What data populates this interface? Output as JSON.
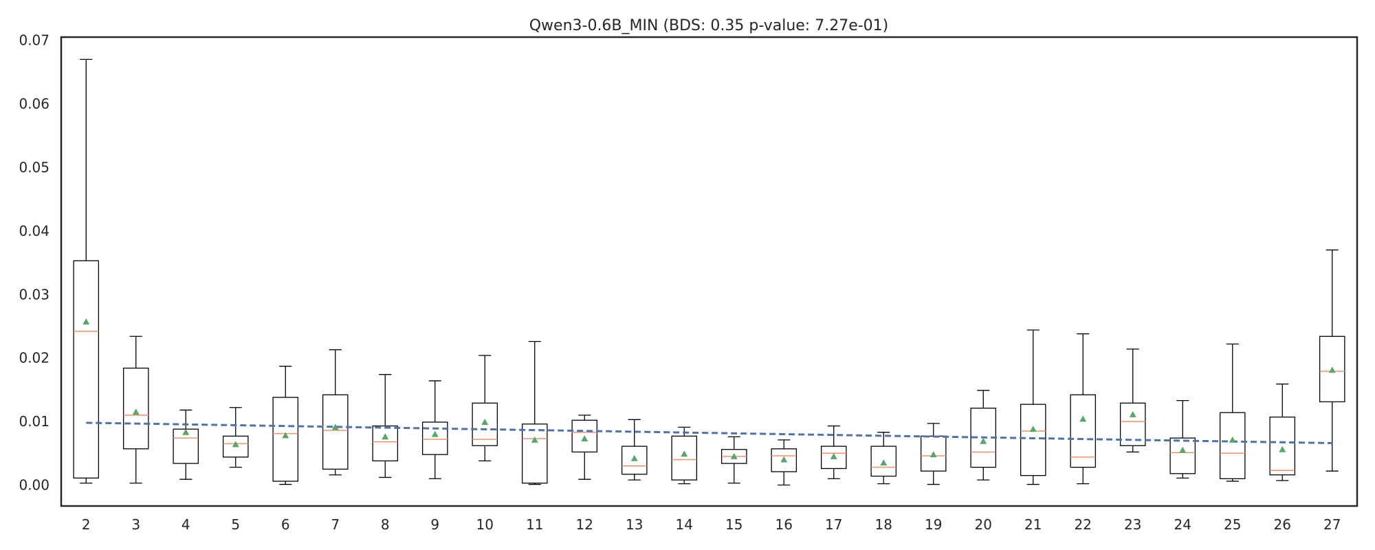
{
  "chart_data": {
    "type": "box",
    "title": "Qwen3-0.6B_MIN (BDS: 0.35 p-value: 7.27e-01)",
    "xlabel": "",
    "ylabel": "",
    "ylim": [
      -0.0033,
      0.0705
    ],
    "yticks": [
      0.0,
      0.01,
      0.02,
      0.03,
      0.04,
      0.05,
      0.06,
      0.07
    ],
    "ytick_labels": [
      "0.00",
      "0.01",
      "0.02",
      "0.03",
      "0.04",
      "0.05",
      "0.06",
      "0.07"
    ],
    "grid": false,
    "categories": [
      "2",
      "3",
      "4",
      "5",
      "6",
      "7",
      "8",
      "9",
      "10",
      "11",
      "12",
      "13",
      "14",
      "15",
      "16",
      "17",
      "18",
      "19",
      "20",
      "21",
      "22",
      "23",
      "24",
      "25",
      "26",
      "27"
    ],
    "boxes": [
      {
        "whislo": 0.0003,
        "q1": 0.0011,
        "med": 0.0242,
        "q3": 0.0353,
        "whishi": 0.067,
        "mean": 0.0257
      },
      {
        "whislo": 0.0003,
        "q1": 0.0057,
        "med": 0.011,
        "q3": 0.0184,
        "whishi": 0.0234,
        "mean": 0.0115
      },
      {
        "whislo": 0.0009,
        "q1": 0.0034,
        "med": 0.0074,
        "q3": 0.0088,
        "whishi": 0.0118,
        "mean": 0.0083
      },
      {
        "whislo": 0.0028,
        "q1": 0.0044,
        "med": 0.0065,
        "q3": 0.0077,
        "whishi": 0.0122,
        "mean": 0.0064
      },
      {
        "whislo": 0.0001,
        "q1": 0.0006,
        "med": 0.0081,
        "q3": 0.0138,
        "whishi": 0.0187,
        "mean": 0.0078
      },
      {
        "whislo": 0.0016,
        "q1": 0.0025,
        "med": 0.0086,
        "q3": 0.0142,
        "whishi": 0.0213,
        "mean": 0.0091
      },
      {
        "whislo": 0.0012,
        "q1": 0.0038,
        "med": 0.0068,
        "q3": 0.0093,
        "whishi": 0.0174,
        "mean": 0.0076
      },
      {
        "whislo": 0.001,
        "q1": 0.0048,
        "med": 0.0072,
        "q3": 0.0099,
        "whishi": 0.0164,
        "mean": 0.008
      },
      {
        "whislo": 0.0038,
        "q1": 0.0062,
        "med": 0.0072,
        "q3": 0.0129,
        "whishi": 0.0204,
        "mean": 0.0099
      },
      {
        "whislo": 0.0001,
        "q1": 0.0003,
        "med": 0.0073,
        "q3": 0.0096,
        "whishi": 0.0226,
        "mean": 0.0071
      },
      {
        "whislo": 0.0009,
        "q1": 0.0052,
        "med": 0.0083,
        "q3": 0.0102,
        "whishi": 0.011,
        "mean": 0.0073
      },
      {
        "whislo": 0.0008,
        "q1": 0.0017,
        "med": 0.003,
        "q3": 0.0061,
        "whishi": 0.0103,
        "mean": 0.0042
      },
      {
        "whislo": 0.0002,
        "q1": 0.0008,
        "med": 0.004,
        "q3": 0.0077,
        "whishi": 0.0091,
        "mean": 0.0049
      },
      {
        "whislo": 0.0003,
        "q1": 0.0034,
        "med": 0.0045,
        "q3": 0.0056,
        "whishi": 0.0076,
        "mean": 0.0045
      },
      {
        "whislo": 0.0,
        "q1": 0.0021,
        "med": 0.0046,
        "q3": 0.0057,
        "whishi": 0.0071,
        "mean": 0.004
      },
      {
        "whislo": 0.001,
        "q1": 0.0026,
        "med": 0.005,
        "q3": 0.0061,
        "whishi": 0.0093,
        "mean": 0.0045
      },
      {
        "whislo": 0.0002,
        "q1": 0.0014,
        "med": 0.0028,
        "q3": 0.0061,
        "whishi": 0.0083,
        "mean": 0.0035
      },
      {
        "whislo": 0.0001,
        "q1": 0.0022,
        "med": 0.0046,
        "q3": 0.0077,
        "whishi": 0.0097,
        "mean": 0.0048
      },
      {
        "whislo": 0.0008,
        "q1": 0.0028,
        "med": 0.0052,
        "q3": 0.0121,
        "whishi": 0.0149,
        "mean": 0.0069
      },
      {
        "whislo": 0.0001,
        "q1": 0.0015,
        "med": 0.0085,
        "q3": 0.0127,
        "whishi": 0.0244,
        "mean": 0.0088
      },
      {
        "whislo": 0.0002,
        "q1": 0.0028,
        "med": 0.0044,
        "q3": 0.0142,
        "whishi": 0.0238,
        "mean": 0.0104
      },
      {
        "whislo": 0.0052,
        "q1": 0.0062,
        "med": 0.01,
        "q3": 0.0129,
        "whishi": 0.0214,
        "mean": 0.0111
      },
      {
        "whislo": 0.0011,
        "q1": 0.0018,
        "med": 0.0051,
        "q3": 0.0074,
        "whishi": 0.0133,
        "mean": 0.0055
      },
      {
        "whislo": 0.0006,
        "q1": 0.001,
        "med": 0.005,
        "q3": 0.0114,
        "whishi": 0.0222,
        "mean": 0.0071
      },
      {
        "whislo": 0.0007,
        "q1": 0.0016,
        "med": 0.0023,
        "q3": 0.0107,
        "whishi": 0.0159,
        "mean": 0.0056
      },
      {
        "whislo": 0.0022,
        "q1": 0.0131,
        "med": 0.0179,
        "q3": 0.0234,
        "whishi": 0.037,
        "mean": 0.0181
      }
    ],
    "trend_line": {
      "x_start": "2",
      "y_start": 0.0098,
      "x_end": "27",
      "y_end": 0.0066,
      "style": "dashed"
    },
    "colors": {
      "box": "#000000",
      "median": "#f0926a",
      "mean_marker": "#55a868",
      "trend": "#4c72b0",
      "axes": "#262626"
    }
  }
}
